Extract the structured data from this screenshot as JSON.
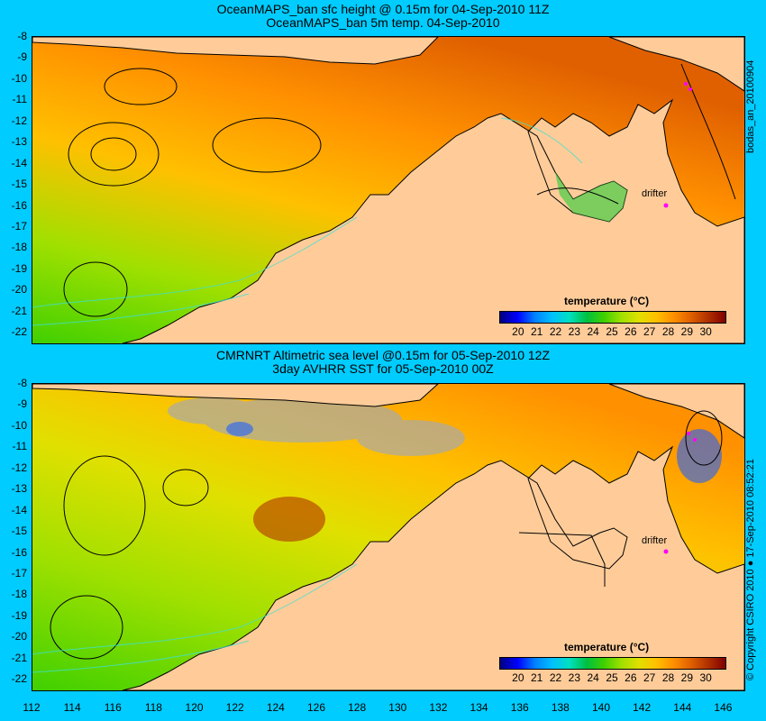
{
  "top_panel": {
    "title_line1": "OceanMAPS_ban sfc height @ 0.15m for 04-Sep-2010 11Z",
    "title_line2": "OceanMAPS_ban 5m temp. 04-Sep-2010",
    "side_label": "bodas_an_20100904",
    "drifter_label": "drifter",
    "colorbar_title": "temperature (°C)"
  },
  "bottom_panel": {
    "title_line1": "CMRNRT Altimetric sea level  @0.15m  for 05-Sep-2010 12Z",
    "title_line2": "3day AVHRR SST for 05-Sep-2010 00Z",
    "side_label": "© Copyright CSIRO 2010 ● 17-Sep-2010 08:52:21",
    "drifter_label": "drifter",
    "colorbar_title": "temperature (°C)"
  },
  "axes": {
    "x_ticks": [
      "112",
      "114",
      "116",
      "118",
      "120",
      "122",
      "124",
      "126",
      "128",
      "130",
      "132",
      "134",
      "136",
      "138",
      "140",
      "142",
      "144",
      "146"
    ],
    "y_ticks": [
      "-8",
      "-9",
      "-10",
      "-11",
      "-12",
      "-13",
      "-14",
      "-15",
      "-16",
      "-17",
      "-18",
      "-19",
      "-20",
      "-21",
      "-22"
    ],
    "lon_range": [
      112,
      147
    ],
    "lat_range": [
      -22.5,
      -8
    ]
  },
  "colorbar": {
    "ticks": [
      "20",
      "21",
      "22",
      "23",
      "24",
      "25",
      "26",
      "27",
      "28",
      "29",
      "30"
    ],
    "range": [
      19,
      31
    ],
    "colors": [
      "#000080",
      "#0000ff",
      "#0080ff",
      "#00c0ff",
      "#00e0c0",
      "#00c040",
      "#40d000",
      "#a0e000",
      "#e0e000",
      "#ffc000",
      "#ff9000",
      "#e06000",
      "#b03000",
      "#800000"
    ]
  },
  "colors": {
    "background": "#00ccff",
    "land": "#ffcc99",
    "mask": "#aaaaaa",
    "contour_depth": "#40e0d0",
    "contour_height": "#000000",
    "drifter": "#ff00ff"
  }
}
